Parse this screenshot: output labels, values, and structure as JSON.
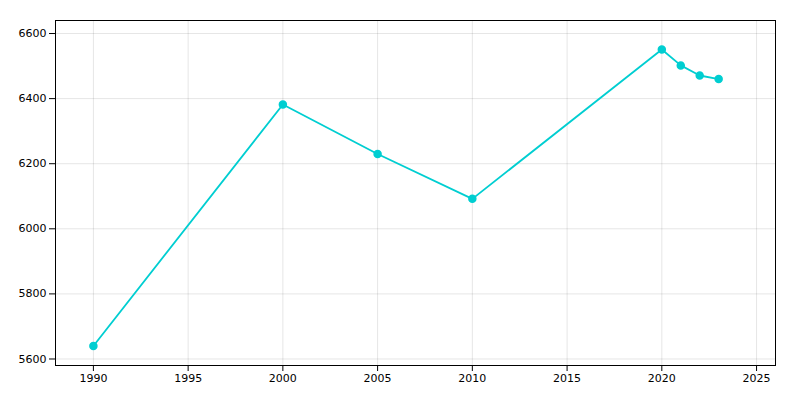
{
  "chart_data": {
    "type": "line",
    "x": [
      1990,
      2000,
      2005,
      2010,
      2020,
      2021,
      2022,
      2023
    ],
    "values": [
      5640,
      6382,
      6230,
      6092,
      6551,
      6502,
      6471,
      6460
    ],
    "color": "#00CED1",
    "marker": "circle",
    "xlim": [
      1988,
      2026
    ],
    "ylim": [
      5580,
      6640
    ],
    "xticks": [
      1990,
      1995,
      2000,
      2005,
      2010,
      2015,
      2020,
      2025
    ],
    "yticks": [
      5600,
      5800,
      6000,
      6200,
      6400,
      6600
    ],
    "grid": true
  }
}
